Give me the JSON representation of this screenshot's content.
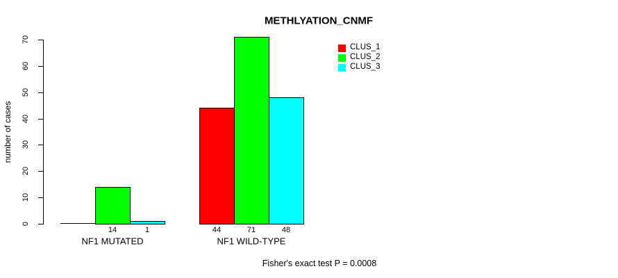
{
  "chart_data": {
    "type": "bar",
    "title": "METHLYATION_CNMF",
    "ylabel": "number of cases",
    "xlabel": "",
    "categories": [
      "NF1 MUTATED",
      "NF1 WILD-TYPE"
    ],
    "series": [
      {
        "name": "CLUS_1",
        "color": "#ff0000",
        "values": [
          0,
          44
        ]
      },
      {
        "name": "CLUS_2",
        "color": "#00ff00",
        "values": [
          14,
          71
        ]
      },
      {
        "name": "CLUS_3",
        "color": "#00ffff",
        "values": [
          1,
          48
        ]
      }
    ],
    "value_labels": [
      [
        "",
        "14",
        "1"
      ],
      [
        "44",
        "71",
        "48"
      ]
    ],
    "ylim": [
      0,
      70
    ],
    "yticks": [
      0,
      10,
      20,
      30,
      40,
      50,
      60,
      70
    ],
    "grid": false,
    "legend": {
      "position": "top-right",
      "entries": [
        "CLUS_1",
        "CLUS_2",
        "CLUS_3"
      ]
    },
    "annotation": "Fisher's exact test P = 0.0008",
    "bar_border_color": "#000000",
    "axis_color": "#000000",
    "background_color": "#ffffff"
  }
}
